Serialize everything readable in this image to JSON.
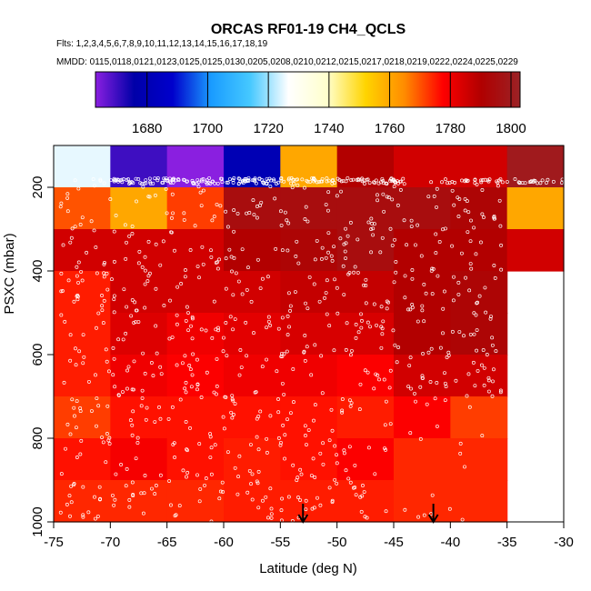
{
  "chart_data": {
    "type": "heatmap",
    "title": "ORCAS RF01-19 CH4_QCLS",
    "flights_text": "Flts: 1,2,3,4,5,6,7,8,9,10,11,12,13,14,15,16,17,18,19",
    "dates_text": "MMDD: 0115,0118,0121,0123,0125,0125,0130,0205,0208,0210,0212,0215,0217,0218,0219,0222,0224,0225,0229",
    "xlabel": "Latitude (deg N)",
    "ylabel": "PSXC (mbar)",
    "xlim": [
      -75,
      -30
    ],
    "ylim": [
      1000,
      100
    ],
    "x_ticks": [
      -75,
      -70,
      -65,
      -60,
      -55,
      -50,
      -45,
      -40,
      -35,
      -30
    ],
    "y_ticks": [
      200,
      400,
      600,
      800,
      1000
    ],
    "colorbar": {
      "range": [
        1663,
        1803
      ],
      "ticks": [
        1680,
        1700,
        1720,
        1740,
        1760,
        1780,
        1800
      ],
      "colors": [
        "#8a1fe0",
        "#0000a8",
        "#0000cc",
        "#1a9cff",
        "#45c8ff",
        "#ffffff",
        "#ffffcc",
        "#ffd400",
        "#ff8c00",
        "#ff0000",
        "#b00000",
        "#9b2226"
      ]
    },
    "x_bins": [
      -75,
      -70,
      -65,
      -60,
      -55,
      -50,
      -45,
      -40,
      -35,
      -30
    ],
    "y_bins": [
      100,
      200,
      300,
      400,
      500,
      600,
      700,
      800,
      900,
      1000
    ],
    "cells": [
      [
        1725,
        1670,
        1663,
        1680,
        1760,
        1790,
        1785,
        1785,
        1800
      ],
      [
        1770,
        1760,
        1772,
        1795,
        1795,
        1795,
        1795,
        1792,
        1760
      ],
      [
        1785,
        1785,
        1785,
        1790,
        1792,
        1795,
        1790,
        1790,
        1785
      ],
      [
        1775,
        1785,
        1785,
        1785,
        1787,
        1787,
        1790,
        1792,
        null
      ],
      [
        1775,
        1783,
        1780,
        1782,
        1784,
        1784,
        1790,
        1792,
        null
      ],
      [
        1775,
        1780,
        1778,
        1780,
        1780,
        1778,
        1785,
        1785,
        null
      ],
      [
        1772,
        1776,
        1776,
        1776,
        1776,
        1775,
        1778,
        1772,
        null
      ],
      [
        1776,
        1779,
        1776,
        1775,
        1776,
        1778,
        1774,
        1774,
        null
      ],
      [
        1774,
        1774,
        1774,
        1775,
        1775,
        1775,
        1774,
        1774,
        null
      ]
    ],
    "arrows_x": [
      -53,
      -41.5
    ]
  }
}
